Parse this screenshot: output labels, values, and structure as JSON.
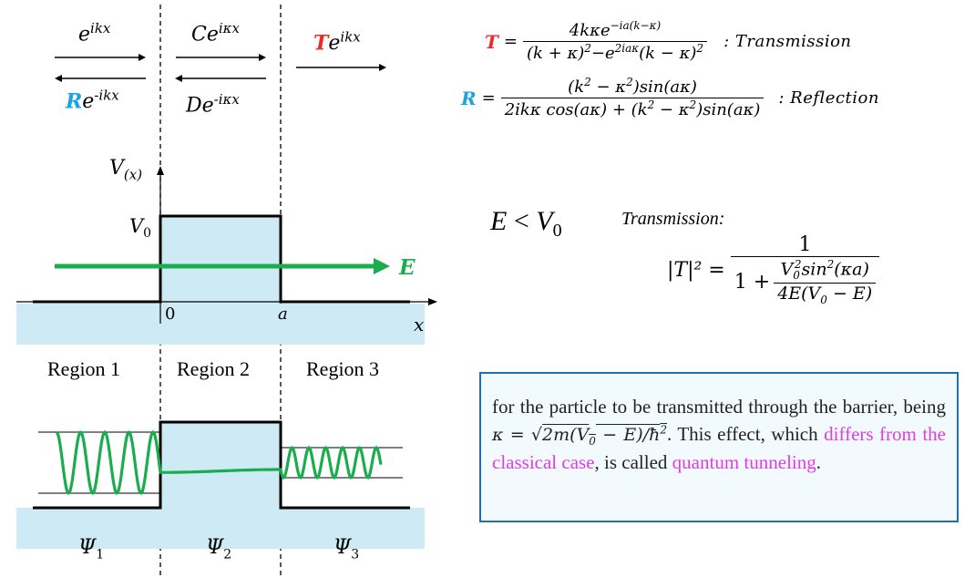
{
  "top_labels": {
    "r1_right": "e^{ikx}",
    "r1_left_coef": "R",
    "r1_left_rest": "e^{-ikx}",
    "r2_right": "Ce^{iκx}",
    "r2_left": "De^{-iκx}",
    "r3_right_coef": "T",
    "r3_right_rest": "e^{ikx}"
  },
  "potential_plot": {
    "y_label": "V(x)",
    "v0_label": "V0",
    "energy_label": "E",
    "x_label": "x",
    "tick_0": "0",
    "tick_a": "a",
    "regions": [
      "Region 1",
      "Region 2",
      "Region 3"
    ],
    "psi_labels": [
      "Ψ1",
      "Ψ2",
      "Ψ3"
    ]
  },
  "formulas": {
    "T_symbol": "T",
    "T_num": "4kκe^{−ia(k−κ)}",
    "T_den": "(k + κ)²−e^{2iaκ}(k − κ)²",
    "T_tag": ": Transmission",
    "R_symbol": "R",
    "R_num": "(k² − κ²)sin(aκ)",
    "R_den": "2ikκ cos(aκ) + (k² − κ²)sin(aκ)",
    "R_tag": ": Reflection",
    "condition": "E < V0",
    "transmission_heading": "Transmission:",
    "T2_lhs": "|T|² =",
    "T2_num": "1",
    "T2_den_prefix": "1 +",
    "T2_inner_num": "V0²sin²(κa)",
    "T2_inner_den": "4E(V0 − E)"
  },
  "textbox": {
    "p1": "for the particle to be transmitted through the barrier, being ",
    "kappa_expr": "κ = √(2m(V0 − E)/ħ²)",
    "p2": ". This effect, which ",
    "highlight1": "differs from the classical case",
    "p3": ", is called ",
    "highlight2": "quantum tunneling",
    "p4": "."
  },
  "colors": {
    "barrier_fill": "#cdeaf5",
    "ground_fill": "#cdeaf5",
    "wave_green": "#1aad4d",
    "transmission_red": "#ef2a2a",
    "reflection_blue": "#1aa3e6",
    "highlight_magenta": "#e13ce6",
    "box_border": "#1f6fb2"
  }
}
